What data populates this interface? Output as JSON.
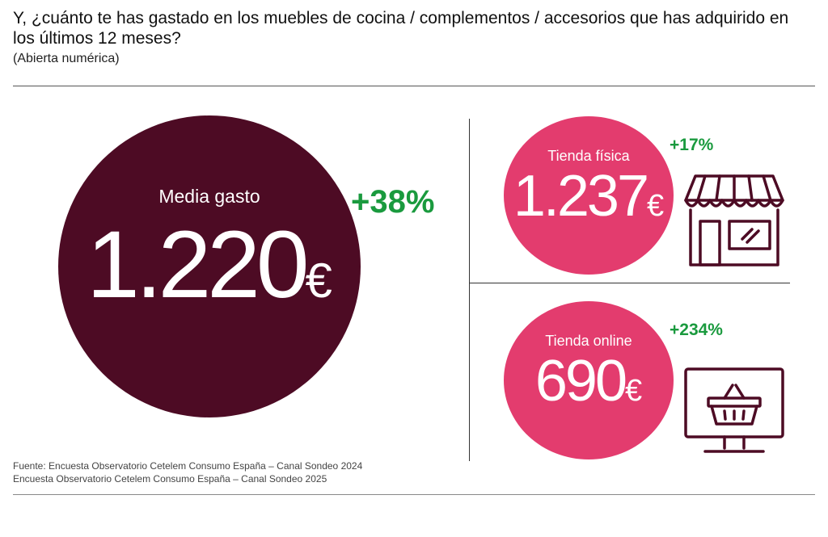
{
  "header": {
    "title": "Y, ¿cuánto te has gastado en los muebles de cocina / complementos / accesorios que has adquirido en los últimos 12 meses?",
    "subtitle": "(Abierta numérica)"
  },
  "main": {
    "label": "Media gasto",
    "value": "1.220",
    "currency": "€",
    "change": "+38%"
  },
  "physical": {
    "label": "Tienda física",
    "value": "1.237",
    "currency": "€",
    "change": "+17%"
  },
  "online": {
    "label": "Tienda online",
    "value": "690",
    "currency": "€",
    "change": "+234%"
  },
  "source": {
    "line1": "Fuente: Encuesta Observatorio Cetelem Consumo España – Canal Sondeo 2024",
    "line2": "Encuesta Observatorio Cetelem Consumo España – Canal Sondeo 2025"
  },
  "icons": {
    "physical": "shop-icon",
    "online": "online-shopping-icon"
  },
  "colors": {
    "main_circle": "#4d0b24",
    "secondary_circle": "#e33c6e",
    "positive_change": "#1a9a3e",
    "icon_stroke": "#4d0b24"
  }
}
